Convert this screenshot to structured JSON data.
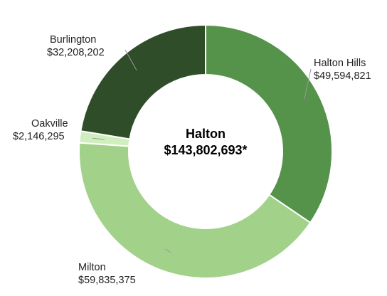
{
  "chart_data": {
    "type": "pie",
    "center_label": "Halton",
    "total_label": "$143,802,693*",
    "slices": [
      {
        "name": "Halton Hills",
        "value": 49594821,
        "value_label": "$49,594,821",
        "color": "#55924a"
      },
      {
        "name": "Milton",
        "value": 59835375,
        "value_label": "$59,835,375",
        "color": "#a2d18a"
      },
      {
        "name": "Oakville",
        "value": 2146295,
        "value_label": "$2,146,295",
        "color": "#d1eebe"
      },
      {
        "name": "Burlington",
        "value": 32208202,
        "value_label": "$32,208,202",
        "color": "#2e4d28"
      }
    ]
  }
}
